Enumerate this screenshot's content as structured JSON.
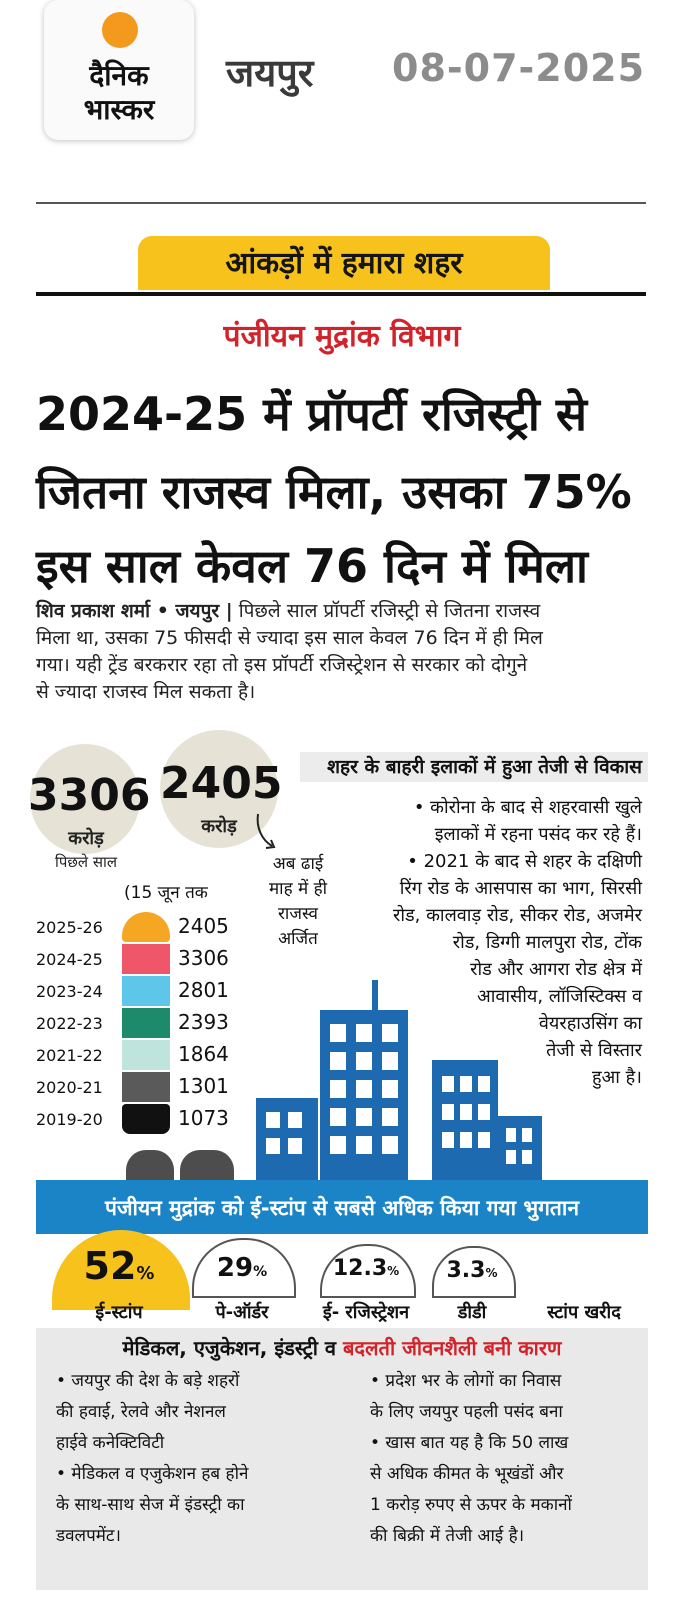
{
  "header": {
    "logo": {
      "line1": "दैनिक",
      "line2": "भास्कर"
    },
    "city": "जयपुर",
    "date": "08-07-2025"
  },
  "section": "आंकड़ों में हमारा शहर",
  "kicker": "पंजीयन मुद्रांक विभाग",
  "headline": [
    "2024-25 में प्रॉपर्टी रजिस्ट्री से",
    "जितना राजस्व मिला, उसका 75%",
    "इस साल केवल 76 दिन में मिला"
  ],
  "lead": {
    "byline": "शिव प्रकाश शर्मा • जयपुर |",
    "lines": [
      "पिछले साल प्रॉपर्टी रजिस्ट्री से जितना राजस्व",
      "मिला था, उसका 75 फीसदी से ज्यादा इस साल केवल 76 दिन में ही मिल",
      "गया। यही ट्रेंड बरकरार रहा तो इस प्रॉपर्टी रजिस्ट्रेशन से सरकार को दोगुने",
      "से ज्यादा राजस्व मिल सकता है।"
    ]
  },
  "stats": {
    "last_year": {
      "value": "3306",
      "unit": "करोड़",
      "note": "पिछले साल"
    },
    "this_year": {
      "value": "2405",
      "unit": "करोड़"
    },
    "note_lines": [
      "अब ढाई",
      "माह में ही",
      "राजस्व",
      "अर्जित"
    ],
    "until_note": "(15 जून तक"
  },
  "right_column": {
    "heading": "शहर के बाहरी इलाकों में हुआ तेजी से विकास",
    "bullets": [
      "• कोरोना के बाद से शहरवासी खुले",
      "इलाकों में रहना पसंद कर रहे हैं।",
      "• 2021 के बाद से शहर के दक्षिणी",
      "रिंग रोड के आसपास का भाग, सिरसी",
      "रोड, कालवाड़ रोड, सीकर रोड, अजमेर",
      "रोड, डिग्गी मालपुरा रोड, टोंक",
      "रोड और आगरा रोड क्षेत्र में",
      "आवासीय, लॉजिस्टिक्स व",
      "वेयरहाउसिंग का",
      "तेजी से विस्तार",
      "हुआ है।"
    ]
  },
  "revenue_table": {
    "rows": [
      {
        "year": "2025-26",
        "value": "2405",
        "color": "#f5a623"
      },
      {
        "year": "2024-25",
        "value": "3306",
        "color": "#f0566a"
      },
      {
        "year": "2023-24",
        "value": "2801",
        "color": "#5ec6e8"
      },
      {
        "year": "2022-23",
        "value": "2393",
        "color": "#1e8a6c"
      },
      {
        "year": "2021-22",
        "value": "1864",
        "color": "#bfe3dd"
      },
      {
        "year": "2020-21",
        "value": "1301",
        "color": "#5a5a5a"
      },
      {
        "year": "2019-20",
        "value": "1073",
        "color": "#111111"
      }
    ]
  },
  "payments": {
    "title": "पंजीयन मुद्रांक को ई-स्टांप से सबसे अधिक किया गया भुगतान",
    "items": [
      {
        "value": "52",
        "pct": "%",
        "label": "ई-स्टांप"
      },
      {
        "value": "29",
        "pct": "%",
        "label": "पे-ऑर्डर"
      },
      {
        "value": "12.3",
        "pct": "%",
        "label": "ई- रजिस्ट्रेशन"
      },
      {
        "value": "3.3",
        "pct": "%",
        "label": "डीडी"
      },
      {
        "value": "",
        "pct": "",
        "label": "स्टांप खरीद"
      }
    ],
    "accent": "#f6c21b"
  },
  "reasons": {
    "heading_black": "मेडिकल, एजुकेशन, इंडस्ट्री व",
    "heading_red": "बदलती जीवनशैली बनी कारण",
    "left": [
      "• जयपुर की देश के बड़े शहरों",
      "की हवाई, रेलवे और नेशनल",
      "हाईवे कनेक्टिविटी",
      "• मेडिकल व एजुकेशन हब होने",
      "के साथ-साथ सेज में इंडस्ट्री का",
      "डवलपमेंट।"
    ],
    "right": [
      "• प्रदेश भर के लोगों का निवास",
      "के लिए जयपुर पहली पसंद बना",
      "• खास बात यह है कि 50 लाख",
      "से अधिक कीमत के भूखंडों और",
      "1 करोड़ रुपए से ऊपर के मकानों",
      "की बिक्री में तेजी आई है।"
    ]
  },
  "colors": {
    "accent_yellow": "#f6c21b",
    "band_blue": "#1a84c6",
    "red": "#d2232a",
    "building_blue": "#1e6ab0"
  }
}
